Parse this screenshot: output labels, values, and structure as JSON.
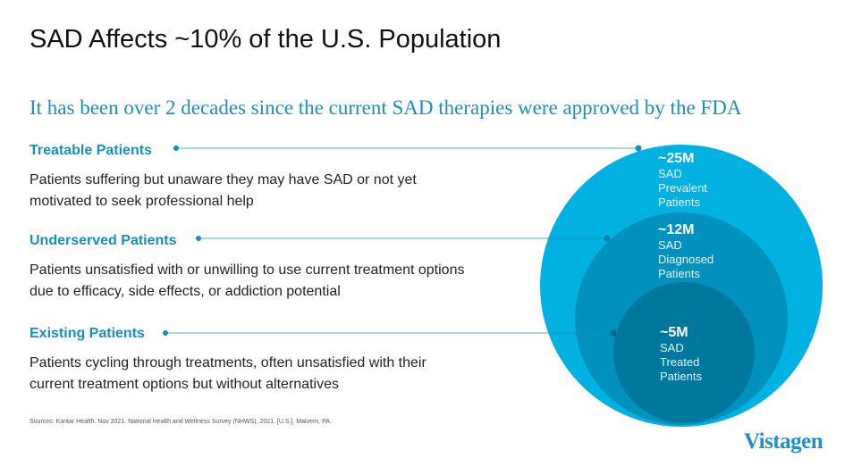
{
  "title": "SAD Affects ~10% of the U.S. Population",
  "subtitle": "It has been over 2 decades since the current SAD therapies were approved by the FDA",
  "segments": [
    {
      "heading": "Treatable Patients",
      "description": "Patients suffering but unaware they may have SAD or not yet motivated to seek professional help"
    },
    {
      "heading": "Underserved Patients",
      "description": "Patients unsatisfied with or unwilling to use current treatment options due to efficacy, side effects, or addiction potential"
    },
    {
      "heading": "Existing Patients",
      "description": "Patients cycling through treatments, often unsatisfied with their current treatment options but without alternatives"
    }
  ],
  "circles": [
    {
      "value": "~25M",
      "line1": "SAD",
      "line2": "Prevalent",
      "line3": "Patients",
      "color": "#00b1e1"
    },
    {
      "value": "~12M",
      "line1": "SAD",
      "line2": "Diagnosed",
      "line3": "Patients",
      "color": "#0091bf"
    },
    {
      "value": "~5M",
      "line1": "SAD",
      "line2": "Treated",
      "line3": "Patients",
      "color": "#00779d"
    }
  ],
  "connector_color": "#1590bd",
  "sources": "Sources: Kantar Health. Nov 2021. National Health and Wellness Survey (NHWS), 2021. [U.S.]. Malvern, PA.",
  "logo": "Vistagen"
}
